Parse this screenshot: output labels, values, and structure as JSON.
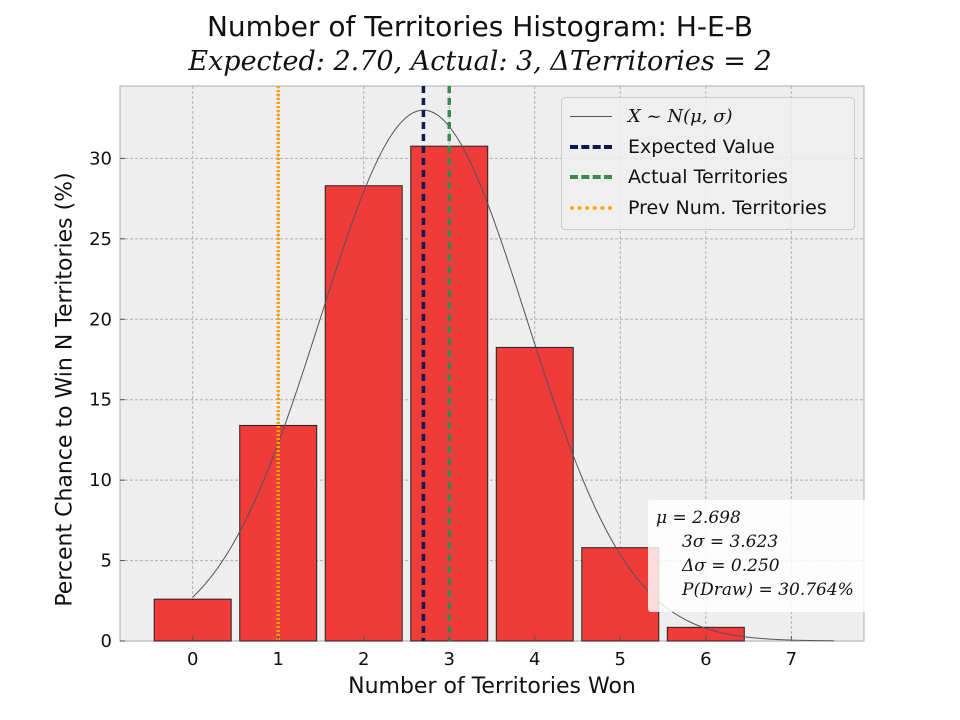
{
  "chart_data": {
    "type": "bar",
    "title": "Number of Territories Histogram: H-E-B",
    "subtitle": "Expected: 2.70, Actual: 3, ΔTerritories = 2",
    "xlabel": "Number of Territories Won",
    "ylabel": "Percent Chance to Win N Territories (%)",
    "categories": [
      0,
      1,
      2,
      3,
      4,
      5,
      6,
      7
    ],
    "values": [
      2.6,
      13.4,
      28.3,
      30.76,
      18.25,
      5.8,
      0.85,
      0.0
    ],
    "xlim": [
      -0.85,
      7.85
    ],
    "ylim": [
      0,
      34.5
    ],
    "yticks": [
      0,
      5,
      10,
      15,
      20,
      25,
      30
    ],
    "xticks": [
      0,
      1,
      2,
      3,
      4,
      5,
      6,
      7
    ],
    "grid": true,
    "bar_color": "#ef3b3a",
    "normal_curve": {
      "mu": 2.698,
      "sigma": 1.208,
      "peak": 33.0,
      "x_start": 0,
      "x_end": 7.5,
      "color": "#555555"
    },
    "vlines": [
      {
        "name": "Expected Value",
        "x": 2.698,
        "color": "#0d1a4d",
        "style": "dashed"
      },
      {
        "name": "Actual Territories",
        "x": 3,
        "color": "#3a8a4a",
        "style": "dashed"
      },
      {
        "name": "Prev Num. Territories",
        "x": 1,
        "color": "#ffa500",
        "style": "dotted"
      }
    ],
    "legend": {
      "placement": "top-right",
      "entries": [
        {
          "label": "X ~ N(μ, σ)",
          "color": "#555555",
          "style": "thin"
        },
        {
          "label": "Expected Value",
          "color": "#0d1a4d",
          "style": "dashed"
        },
        {
          "label": "Actual Territories",
          "color": "#3a8a4a",
          "style": "dashed"
        },
        {
          "label": "Prev Num. Territories",
          "color": "#ffa500",
          "style": "dotted"
        }
      ]
    },
    "stats": {
      "mu": "μ = 2.698",
      "three_sigma": "3σ = 3.623",
      "delta_sigma": "Δσ = 0.250",
      "p_draw": "P(Draw) = 30.764%"
    }
  }
}
